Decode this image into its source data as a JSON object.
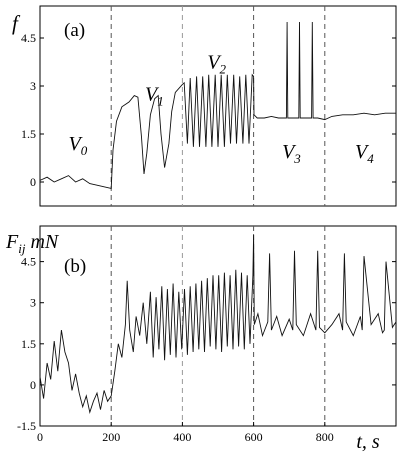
{
  "chart_data": [
    {
      "type": "line",
      "panel_label": "(a)",
      "ylabel": "f",
      "xlim": [
        0,
        1000
      ],
      "ylim": [
        -0.75,
        5.5
      ],
      "yticks": [
        "0",
        "1.5",
        "3",
        "4.5"
      ],
      "ytick_values": [
        0,
        1.5,
        3,
        4.5
      ],
      "dashed_x": [
        200,
        400,
        600,
        800
      ],
      "regions": [
        {
          "name": "V",
          "sub": "0",
          "x": 80,
          "y": 1.0
        },
        {
          "name": "V",
          "sub": "1",
          "x": 295,
          "y": 2.55
        },
        {
          "name": "V",
          "sub": "2",
          "x": 470,
          "y": 3.55
        },
        {
          "name": "V",
          "sub": "3",
          "x": 680,
          "y": 0.75
        },
        {
          "name": "V",
          "sub": "4",
          "x": 885,
          "y": 0.75
        }
      ],
      "series": [
        {
          "x": [
            0,
            20,
            40,
            60,
            80,
            100,
            120,
            140,
            160,
            180,
            200,
            205,
            215,
            230,
            250,
            265,
            275,
            285,
            292,
            300,
            310,
            322,
            332,
            340,
            350,
            362,
            370,
            380,
            400,
            405,
            414,
            422,
            431,
            440,
            448,
            457,
            466,
            474,
            483,
            492,
            500,
            509,
            518,
            526,
            535,
            544,
            552,
            561,
            570,
            578,
            587,
            596,
            600,
            601,
            610,
            630,
            650,
            670,
            692,
            694,
            696,
            710,
            727,
            729,
            731,
            750,
            763,
            765,
            767,
            780,
            800,
            820,
            850,
            880,
            910,
            940,
            970,
            1000
          ],
          "y": [
            0.05,
            0.15,
            0.0,
            0.1,
            0.2,
            0.0,
            0.1,
            -0.05,
            -0.1,
            -0.15,
            -0.2,
            1.0,
            1.9,
            2.35,
            2.5,
            2.7,
            2.65,
            1.4,
            0.25,
            0.9,
            2.1,
            2.6,
            2.7,
            1.5,
            0.45,
            1.2,
            2.2,
            2.8,
            3.05,
            3.1,
            1.2,
            3.25,
            1.1,
            3.3,
            1.1,
            3.3,
            1.1,
            3.35,
            1.1,
            3.35,
            1.1,
            3.35,
            1.1,
            3.35,
            1.2,
            3.35,
            1.2,
            3.3,
            1.2,
            3.35,
            1.2,
            3.35,
            3.3,
            2.1,
            2.0,
            2.0,
            2.05,
            2.0,
            2.0,
            5.0,
            2.0,
            2.0,
            2.0,
            5.0,
            2.0,
            2.0,
            2.0,
            5.0,
            2.0,
            2.0,
            1.95,
            2.05,
            2.1,
            2.1,
            2.15,
            2.1,
            2.15,
            2.15
          ]
        }
      ]
    },
    {
      "type": "line",
      "panel_label": "(b)",
      "ylabel": "F",
      "ylabel_sub": "ij",
      "ylabel_unit": "mN",
      "xlabel": "t, s",
      "xlim": [
        0,
        1000
      ],
      "ylim": [
        -1.5,
        5.8
      ],
      "xticks": [
        "0",
        "200",
        "400",
        "600",
        "800"
      ],
      "xtick_values": [
        0,
        200,
        400,
        600,
        800
      ],
      "yticks": [
        "-1.5",
        "0",
        "1.5",
        "3",
        "4.5"
      ],
      "ytick_values": [
        -1.5,
        0,
        1.5,
        3,
        4.5
      ],
      "dashed_x": [
        200,
        400,
        600,
        800
      ],
      "series": [
        {
          "x": [
            0,
            10,
            20,
            30,
            40,
            50,
            60,
            70,
            80,
            90,
            100,
            110,
            120,
            130,
            140,
            150,
            160,
            170,
            180,
            190,
            200,
            210,
            220,
            230,
            240,
            245,
            252,
            262,
            270,
            280,
            290,
            300,
            310,
            318,
            326,
            334,
            342,
            350,
            358,
            366,
            374,
            382,
            390,
            398,
            406,
            414,
            422,
            430,
            438,
            446,
            454,
            462,
            470,
            478,
            486,
            494,
            502,
            510,
            518,
            526,
            534,
            542,
            550,
            558,
            566,
            574,
            582,
            590,
            598,
            600,
            602,
            612,
            625,
            640,
            645,
            650,
            665,
            680,
            700,
            710,
            715,
            720,
            740,
            760,
            775,
            780,
            785,
            800,
            820,
            840,
            850,
            855,
            860,
            880,
            900,
            905,
            910,
            930,
            950,
            962,
            967,
            972,
            990,
            1000
          ],
          "y": [
            0.3,
            -0.5,
            0.8,
            0.2,
            1.6,
            0.5,
            2.0,
            1.2,
            0.8,
            -0.2,
            0.4,
            -0.3,
            -0.8,
            -0.4,
            -1.0,
            -0.6,
            -0.3,
            -0.9,
            -0.2,
            -0.6,
            -0.4,
            0.5,
            1.5,
            1.0,
            2.2,
            3.8,
            2.0,
            1.2,
            2.5,
            1.8,
            3.0,
            1.5,
            3.4,
            1.0,
            3.2,
            1.3,
            3.6,
            0.9,
            3.5,
            1.1,
            3.7,
            1.0,
            3.4,
            1.3,
            3.5,
            1.1,
            3.6,
            1.2,
            3.7,
            1.3,
            3.8,
            1.2,
            3.9,
            1.4,
            4.0,
            1.3,
            4.0,
            1.2,
            4.1,
            1.4,
            4.0,
            1.3,
            4.2,
            1.4,
            4.1,
            1.3,
            4.0,
            1.5,
            4.0,
            5.5,
            2.2,
            2.6,
            1.8,
            2.3,
            4.8,
            2.0,
            2.5,
            1.8,
            2.4,
            2.0,
            4.9,
            2.2,
            1.8,
            2.6,
            2.0,
            4.9,
            2.1,
            1.9,
            2.2,
            2.6,
            2.0,
            4.8,
            2.3,
            1.8,
            2.5,
            2.0,
            4.7,
            2.2,
            2.6,
            1.9,
            2.0,
            4.5,
            2.1,
            2.3
          ]
        }
      ]
    }
  ]
}
